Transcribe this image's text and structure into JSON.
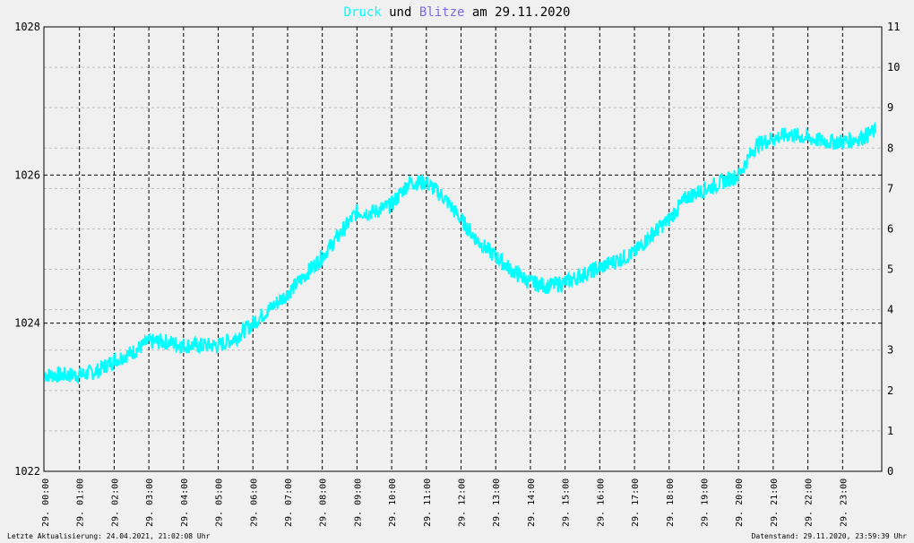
{
  "chart_data": {
    "type": "line",
    "title": {
      "part1": "Druck",
      "part2": " und ",
      "part3": "Blitze",
      "part4": " am 29.11.2020",
      "color_druck": "#00ffff",
      "color_blitze": "#7b68ee"
    },
    "left_axis": {
      "ylim": [
        1022,
        1028
      ],
      "ticks": [
        "1022",
        "1024",
        "1026",
        "1028"
      ]
    },
    "right_axis": {
      "ylim": [
        0,
        11
      ],
      "ticks": [
        "0",
        "1",
        "2",
        "3",
        "4",
        "5",
        "6",
        "7",
        "8",
        "9",
        "10",
        "11"
      ]
    },
    "x_ticks": [
      "29. 00:00",
      "29. 01:00",
      "29. 02:00",
      "29. 03:00",
      "29. 04:00",
      "29. 05:00",
      "29. 06:00",
      "29. 07:00",
      "29. 08:00",
      "29. 09:00",
      "29. 10:00",
      "29. 11:00",
      "29. 12:00",
      "29. 13:00",
      "29. 14:00",
      "29. 15:00",
      "29. 16:00",
      "29. 17:00",
      "29. 18:00",
      "29. 19:00",
      "29. 20:00",
      "29. 21:00",
      "29. 22:00",
      "29. 23:00"
    ],
    "series": [
      {
        "color": "#00ffff",
        "x_hours": [
          0,
          0.5,
          1,
          1.5,
          2,
          2.5,
          3,
          3.5,
          4,
          4.5,
          5,
          5.5,
          6,
          6.5,
          7,
          7.5,
          8,
          8.5,
          9,
          9.5,
          10,
          10.5,
          11,
          11.5,
          12,
          12.5,
          13,
          13.5,
          14,
          14.5,
          15,
          15.5,
          16,
          16.5,
          17,
          17.5,
          18,
          18.5,
          19,
          19.5,
          20,
          20.5,
          21,
          21.5,
          22,
          22.5,
          23,
          23.5,
          24
        ],
        "values": [
          1023.3,
          1023.3,
          1023.3,
          1023.35,
          1023.5,
          1023.6,
          1023.75,
          1023.75,
          1023.7,
          1023.7,
          1023.7,
          1023.8,
          1024.0,
          1024.2,
          1024.4,
          1024.65,
          1024.9,
          1025.2,
          1025.5,
          1025.5,
          1025.6,
          1025.9,
          1025.9,
          1025.7,
          1025.4,
          1025.1,
          1024.9,
          1024.7,
          1024.55,
          1024.5,
          1024.55,
          1024.65,
          1024.75,
          1024.85,
          1024.95,
          1025.2,
          1025.4,
          1025.7,
          1025.8,
          1025.9,
          1026.0,
          1026.4,
          1026.5,
          1026.55,
          1026.5,
          1026.45,
          1026.45,
          1026.5,
          1026.6
        ]
      }
    ]
  },
  "footer": {
    "left": "Letzte Aktualisierung: 24.04.2021, 21:02:08 Uhr",
    "right": "Datenstand: 29.11.2020, 23:59:39 Uhr"
  }
}
